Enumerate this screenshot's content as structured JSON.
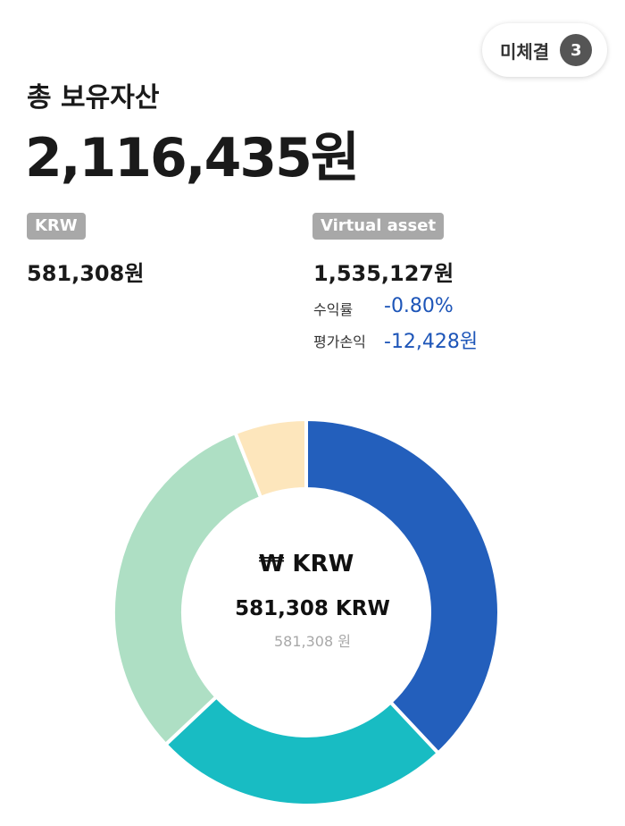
{
  "header": {
    "pending_label": "미체결",
    "pending_count": "3"
  },
  "total": {
    "label": "총 보유자산",
    "value": "2,116,435원"
  },
  "krw": {
    "badge": "KRW",
    "amount": "581,308원"
  },
  "virtual_asset": {
    "badge": "Virtual asset",
    "amount": "1,535,127원",
    "return_label": "수익률",
    "return_value": "-0.80%",
    "pnl_label": "평가손익",
    "pnl_value": "-12,428원"
  },
  "donut": {
    "center_title": "₩ KRW",
    "center_value": "581,308 KRW",
    "center_sub": "581,308 원",
    "segments": [
      {
        "name": "segment-1",
        "share": 0.38,
        "color": "#235fbc"
      },
      {
        "name": "segment-2",
        "share": 0.25,
        "color": "#18bcc3"
      },
      {
        "name": "segment-3",
        "share": 0.31,
        "color": "#aedfc4"
      },
      {
        "name": "segment-4",
        "share": 0.06,
        "color": "#fde6bc"
      }
    ]
  },
  "colors": {
    "accent_blue": "#1d55b8",
    "badge_gray": "#a8a8a8"
  }
}
